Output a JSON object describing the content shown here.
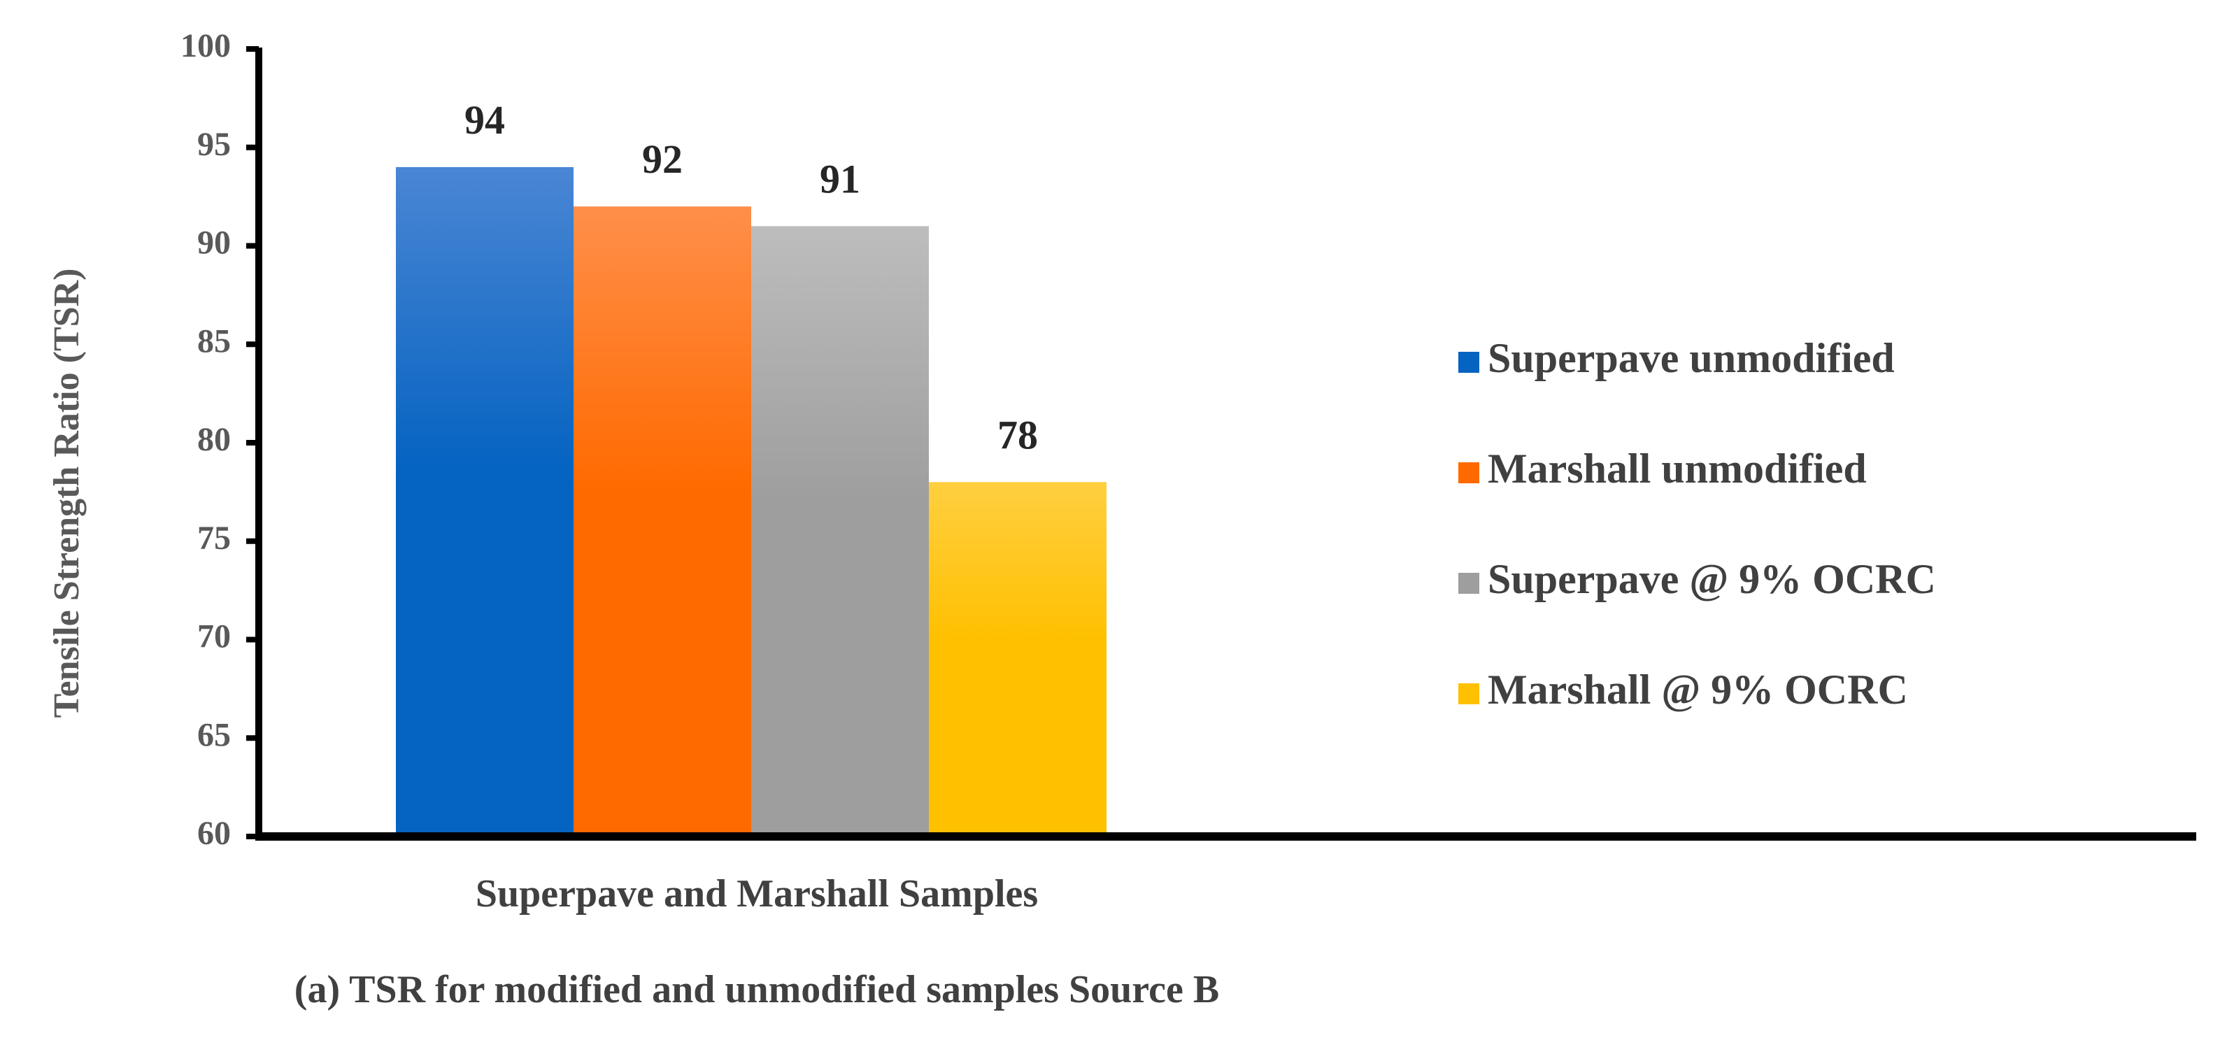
{
  "chart_data": {
    "type": "bar",
    "title": "",
    "caption": "(a) TSR for modified and unmodified samples Source B",
    "xlabel": "Superpave and Marshall Samples",
    "ylabel": "Tensile Strength Ratio (TSR)",
    "ylim": [
      60,
      100
    ],
    "yticks": [
      60,
      65,
      70,
      75,
      80,
      85,
      90,
      95,
      100
    ],
    "grid": false,
    "legend_position": "right",
    "series": [
      {
        "name": "Superpave unmodified",
        "value": 94,
        "label": "94",
        "color": "#0563C1",
        "color_light": "#4A86D4"
      },
      {
        "name": "Marshall unmodified",
        "value": 92,
        "label": "92",
        "color": "#FF6A00",
        "color_light": "#FF8F4A"
      },
      {
        "name": "Superpave @ 9% OCRC",
        "value": 91,
        "label": "91",
        "color": "#9E9E9E",
        "color_light": "#BDBDBD"
      },
      {
        "name": "Marshall @ 9% OCRC",
        "value": 78,
        "label": "78",
        "color": "#FFC000",
        "color_light": "#FFCF40"
      }
    ]
  }
}
